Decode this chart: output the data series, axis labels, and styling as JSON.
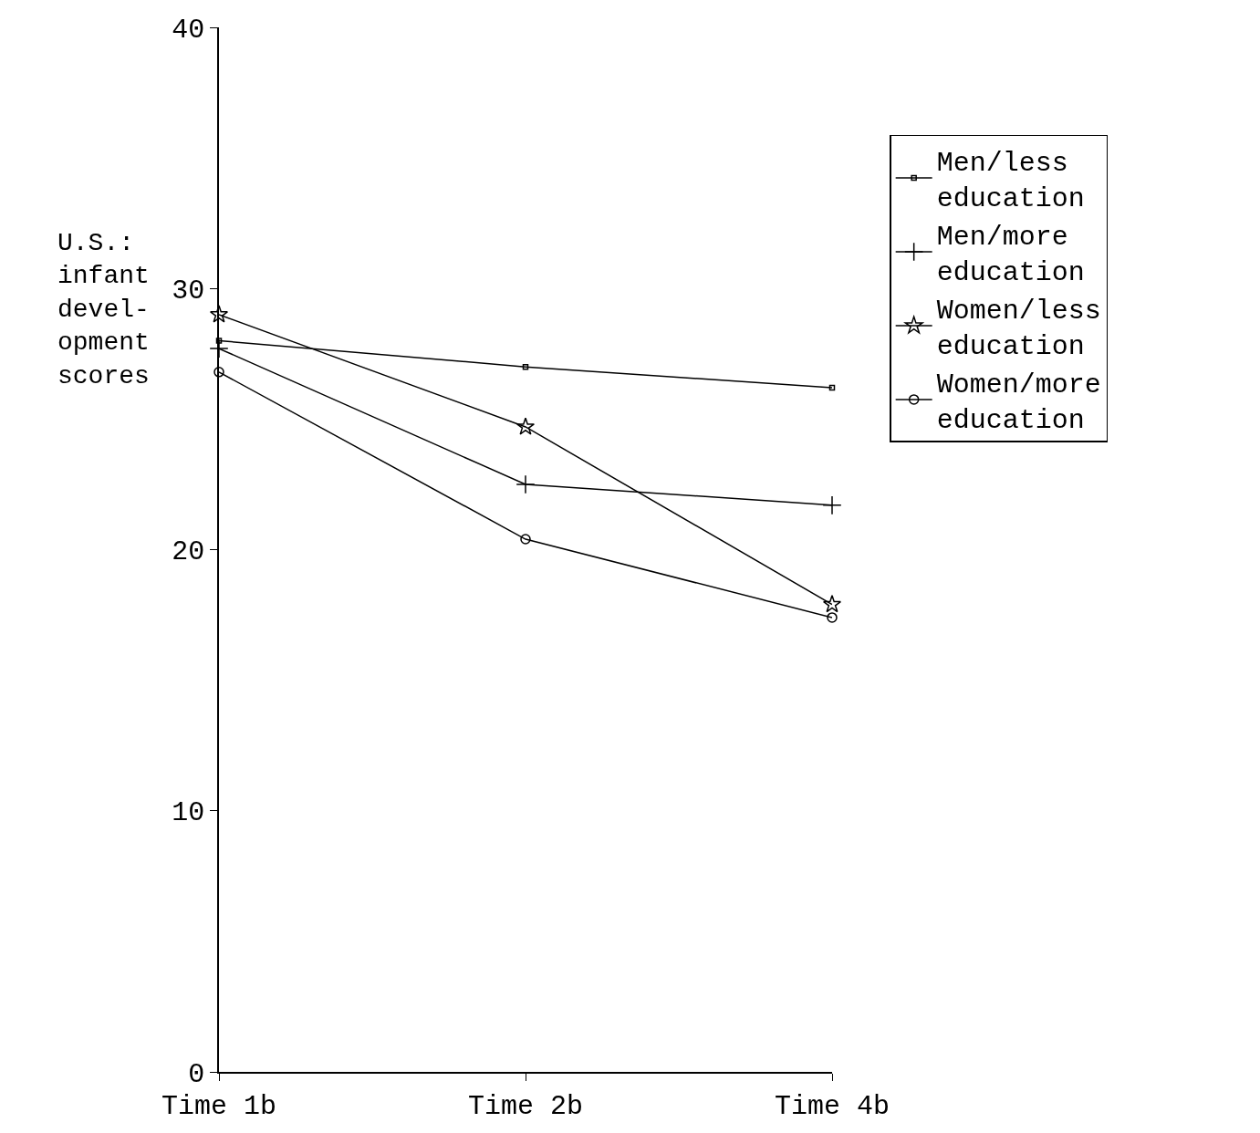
{
  "chart_data": {
    "type": "line",
    "ylabel": "U.S.:\ninfant\ndevel-\nopment\nscores",
    "categories": [
      "Time 1b",
      "Time 2b",
      "Time 4b"
    ],
    "series": [
      {
        "name": "Men/less education",
        "color": "#000000",
        "marker": "square",
        "values": [
          28.0,
          27.0,
          26.2
        ]
      },
      {
        "name": "Men/more education",
        "color": "#000000",
        "marker": "cross",
        "values": [
          27.7,
          22.5,
          21.7
        ]
      },
      {
        "name": "Women/less education",
        "color": "#000000",
        "marker": "star",
        "values": [
          29.0,
          24.7,
          17.9
        ]
      },
      {
        "name": "Women/more education",
        "color": "#000000",
        "marker": "circle",
        "values": [
          26.8,
          20.4,
          17.4
        ]
      }
    ],
    "ylim": [
      0,
      40
    ],
    "yticks": [
      0,
      10,
      20,
      30,
      40
    ],
    "grid": false,
    "legend": "right",
    "line_style": "solid"
  }
}
